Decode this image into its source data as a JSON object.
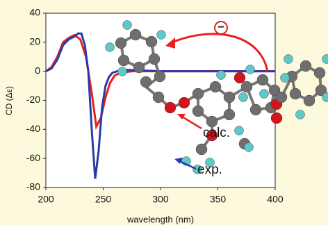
{
  "chart_data": {
    "type": "line",
    "xlabel": "wavelength (nm)",
    "ylabel": "CD (Δε)",
    "xlim": [
      200,
      400
    ],
    "xticks": [
      200,
      250,
      300,
      350,
      400
    ],
    "ylim": [
      -80,
      40
    ],
    "yticks": [
      40,
      20,
      0,
      -20,
      -40,
      -60,
      -80
    ],
    "series": [
      {
        "name": "calc.",
        "color": "#e8211b",
        "x": [
          200,
          205,
          210,
          215,
          220,
          225,
          230,
          235,
          240,
          244,
          248,
          252,
          256,
          260,
          265,
          275,
          300,
          350,
          400
        ],
        "values": [
          0,
          3,
          10,
          20,
          23,
          25,
          22,
          10,
          -15,
          -38,
          -32,
          -18,
          -8,
          -3,
          -1,
          0,
          0,
          0,
          0
        ]
      },
      {
        "name": "exp.",
        "color": "#2a3aa8",
        "x": [
          200,
          205,
          210,
          215,
          220,
          225,
          228,
          231,
          234,
          237,
          240,
          243,
          246,
          249,
          252,
          255,
          258,
          262,
          270,
          300,
          350,
          400
        ],
        "values": [
          0,
          2,
          8,
          18,
          22,
          24,
          26,
          26,
          18,
          0,
          -40,
          -74,
          -55,
          -25,
          -10,
          -4,
          -1,
          0,
          1,
          0,
          0,
          0
        ]
      }
    ],
    "annotation": "−"
  }
}
